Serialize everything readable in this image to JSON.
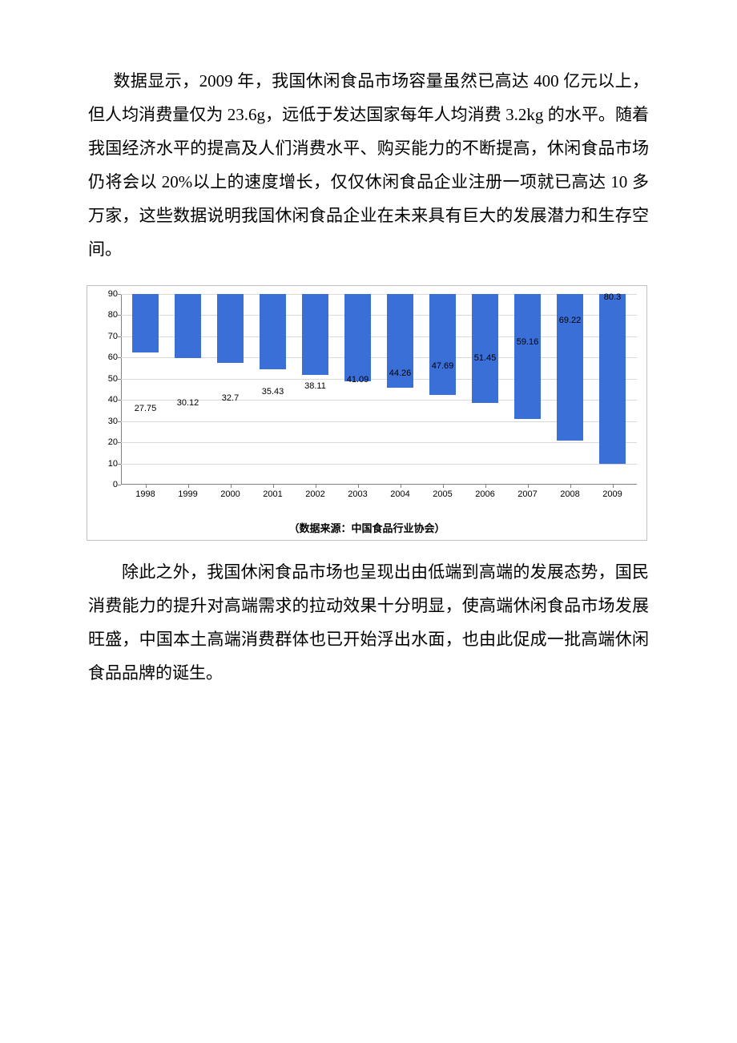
{
  "paragraphs": {
    "p1": "数据显示，2009 年，我国休闲食品市场容量虽然已高达 400 亿元以上，但人均消费量仅为 23.6g，远低于发达国家每年人均消费 3.2kg 的水平。随着我国经济水平的提高及人们消费水平、购买能力的不断提高，休闲食品市场仍将会以 20%以上的速度增长，仅仅休闲食品企业注册一项就已高达 10 多万家，这些数据说明我国休闲食品企业在未来具有巨大的发展潜力和生存空间。",
    "p2": "除此之外，我国休闲食品市场也呈现出由低端到高端的发展态势，国民消费能力的提升对高端需求的拉动效果十分明显，使高端休闲食品市场发展旺盛，中国本土高端消费群体也已开始浮出水面，也由此促成一批高端休闲食品品牌的诞生。"
  },
  "chart": {
    "type": "bar",
    "categories": [
      "1998",
      "1999",
      "2000",
      "2001",
      "2002",
      "2003",
      "2004",
      "2005",
      "2006",
      "2007",
      "2008",
      "2009"
    ],
    "values": [
      27.75,
      30.12,
      32.7,
      35.43,
      38.11,
      41.09,
      44.26,
      47.69,
      51.45,
      59.16,
      69.22,
      80.3
    ],
    "value_labels": [
      "27.75",
      "30.12",
      "32.7",
      "35.43",
      "38.11",
      "41.09",
      "44.26",
      "47.69",
      "51.45",
      "59.16",
      "69.22",
      "80.3"
    ],
    "bar_color": "#3a6fd8",
    "ylim": [
      0,
      90
    ],
    "ytick_step": 10,
    "yticks": [
      "0",
      "10",
      "20",
      "30",
      "40",
      "50",
      "60",
      "70",
      "80",
      "90"
    ],
    "axis_color": "#808080",
    "grid_color": "#d9d9d9",
    "background_color": "#ffffff",
    "label_fontsize": 11,
    "caption": "（数据来源：中国食品行业协会）"
  }
}
